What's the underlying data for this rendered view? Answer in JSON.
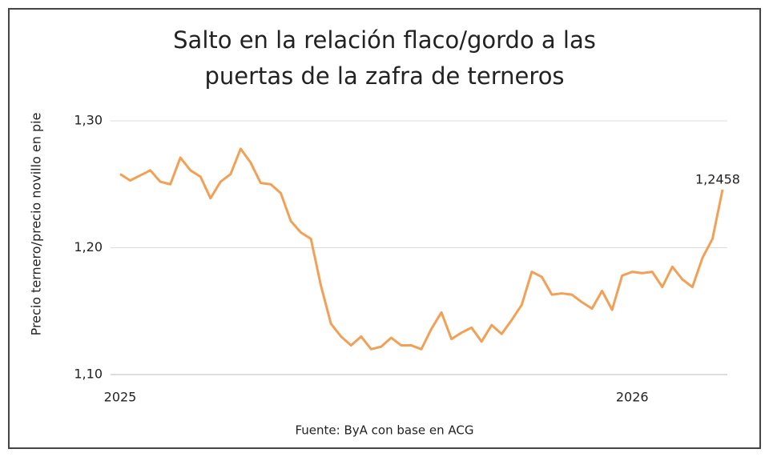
{
  "chart_data": {
    "type": "line",
    "title": "Salto en la relación flaco/gordo a las puertas de la zafra de terneros",
    "y_label": "Precio ternero/precio novillo en pie",
    "source": "Fuente: ByA con base en ACG",
    "categories": [
      "2025",
      null,
      null,
      null,
      null,
      null,
      null,
      null,
      null,
      null,
      null,
      null,
      null,
      null,
      null,
      null,
      null,
      null,
      null,
      null,
      null,
      null,
      null,
      null,
      null,
      null,
      null,
      null,
      null,
      null,
      null,
      null,
      null,
      null,
      null,
      null,
      null,
      null,
      null,
      null,
      null,
      null,
      null,
      null,
      null,
      null,
      null,
      null,
      null,
      null,
      null,
      "2026",
      null,
      null,
      null,
      null,
      null,
      null,
      null,
      null,
      null
    ],
    "series": [
      {
        "name": "Relación flaco/gordo",
        "color": "#f2a055",
        "values": [
          1.258,
          1.253,
          1.257,
          1.261,
          1.252,
          1.25,
          1.271,
          1.261,
          1.256,
          1.239,
          1.252,
          1.258,
          1.278,
          1.267,
          1.251,
          1.25,
          1.243,
          1.221,
          1.212,
          1.207,
          1.17,
          1.14,
          1.13,
          1.123,
          1.13,
          1.12,
          1.122,
          1.129,
          1.123,
          1.123,
          1.12,
          1.136,
          1.149,
          1.128,
          1.133,
          1.137,
          1.126,
          1.139,
          1.132,
          1.143,
          1.155,
          1.181,
          1.177,
          1.163,
          1.164,
          1.163,
          1.157,
          1.152,
          1.166,
          1.151,
          1.178,
          1.181,
          1.18,
          1.181,
          1.169,
          1.185,
          1.175,
          1.169,
          1.192,
          1.207,
          1.2458
        ],
        "value_labels": [
          null,
          null,
          null,
          null,
          null,
          null,
          null,
          null,
          null,
          null,
          null,
          null,
          null,
          null,
          null,
          null,
          null,
          null,
          null,
          null,
          null,
          null,
          null,
          null,
          null,
          null,
          null,
          null,
          null,
          null,
          null,
          null,
          null,
          null,
          null,
          null,
          null,
          null,
          null,
          null,
          null,
          null,
          null,
          null,
          null,
          null,
          null,
          null,
          null,
          null,
          null,
          null,
          null,
          null,
          null,
          null,
          null,
          null,
          null,
          null,
          "1,2458"
        ]
      }
    ],
    "ylim": [
      1.1,
      1.3
    ],
    "yticks": [
      {
        "value": 1.1,
        "label": "1,10"
      },
      {
        "value": 1.2,
        "label": "1,20"
      },
      {
        "value": 1.3,
        "label": "1,30"
      }
    ],
    "grid": true
  }
}
